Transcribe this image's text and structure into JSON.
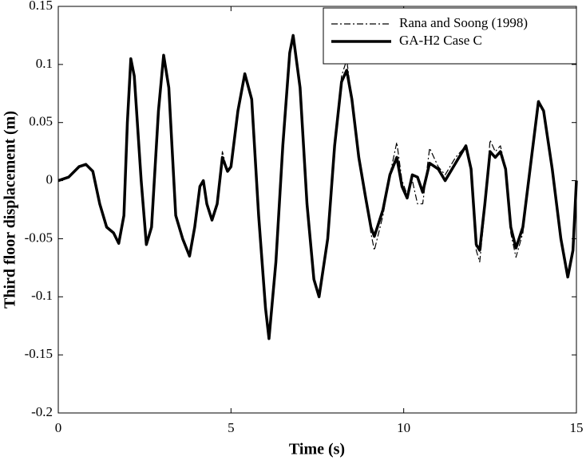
{
  "chart_data": {
    "type": "line",
    "xlabel": "Time (s)",
    "ylabel": "Third floor displacement (m)",
    "x": [
      0,
      0.3,
      0.6,
      0.8,
      1.0,
      1.2,
      1.4,
      1.6,
      1.75,
      1.9,
      2.0,
      2.1,
      2.2,
      2.4,
      2.55,
      2.7,
      2.9,
      3.05,
      3.2,
      3.4,
      3.6,
      3.8,
      3.95,
      4.1,
      4.2,
      4.3,
      4.45,
      4.6,
      4.75,
      4.9,
      5.0,
      5.2,
      5.4,
      5.6,
      5.8,
      6.0,
      6.1,
      6.3,
      6.5,
      6.7,
      6.8,
      7.0,
      7.2,
      7.4,
      7.55,
      7.8,
      8.0,
      8.2,
      8.35,
      8.5,
      8.7,
      8.9,
      9.05,
      9.15,
      9.4,
      9.6,
      9.8,
      9.95,
      10.1,
      10.25,
      10.4,
      10.55,
      10.75,
      11.0,
      11.2,
      11.5,
      11.8,
      11.95,
      12.1,
      12.2,
      12.35,
      12.5,
      12.65,
      12.8,
      12.95,
      13.1,
      13.25,
      13.45,
      13.7,
      13.9,
      14.05,
      14.3,
      14.55,
      14.75,
      14.9,
      15.0
    ],
    "series": [
      {
        "name": "Rana and Soong (1998)",
        "color": "#000000",
        "linestyle": "dashdot",
        "values": [
          0,
          0.003,
          0.012,
          0.014,
          0.008,
          -0.02,
          -0.04,
          -0.045,
          -0.054,
          -0.03,
          0.05,
          0.105,
          0.09,
          0.0,
          -0.055,
          -0.04,
          0.06,
          0.108,
          0.08,
          -0.03,
          -0.05,
          -0.065,
          -0.04,
          -0.005,
          0.0,
          -0.02,
          -0.034,
          -0.02,
          0.025,
          0.008,
          0.012,
          0.06,
          0.092,
          0.07,
          -0.03,
          -0.11,
          -0.136,
          -0.07,
          0.03,
          0.11,
          0.125,
          0.08,
          -0.02,
          -0.085,
          -0.1,
          -0.05,
          0.03,
          0.09,
          0.104,
          0.07,
          0.02,
          -0.015,
          -0.045,
          -0.06,
          -0.03,
          0.005,
          0.033,
          0.0,
          -0.012,
          0.0,
          -0.02,
          -0.02,
          0.028,
          0.012,
          0.005,
          0.02,
          0.03,
          0.01,
          -0.06,
          -0.07,
          -0.025,
          0.035,
          0.025,
          0.03,
          0.01,
          -0.045,
          -0.066,
          -0.045,
          0.02,
          0.07,
          0.06,
          0.01,
          -0.05,
          -0.083,
          -0.06,
          0.0
        ]
      },
      {
        "name": "GA-H2 Case C",
        "color": "#000000",
        "linestyle": "solid",
        "values": [
          0,
          0.003,
          0.012,
          0.014,
          0.008,
          -0.02,
          -0.04,
          -0.045,
          -0.054,
          -0.03,
          0.05,
          0.105,
          0.09,
          0.0,
          -0.055,
          -0.04,
          0.06,
          0.108,
          0.08,
          -0.03,
          -0.05,
          -0.065,
          -0.04,
          -0.005,
          0.0,
          -0.02,
          -0.034,
          -0.02,
          0.02,
          0.008,
          0.012,
          0.06,
          0.092,
          0.07,
          -0.03,
          -0.11,
          -0.136,
          -0.07,
          0.03,
          0.11,
          0.125,
          0.08,
          -0.02,
          -0.085,
          -0.1,
          -0.05,
          0.03,
          0.085,
          0.095,
          0.07,
          0.02,
          -0.015,
          -0.04,
          -0.048,
          -0.025,
          0.005,
          0.02,
          -0.005,
          -0.015,
          0.005,
          0.003,
          -0.01,
          0.015,
          0.01,
          0.0,
          0.015,
          0.03,
          0.01,
          -0.055,
          -0.06,
          -0.02,
          0.025,
          0.02,
          0.025,
          0.01,
          -0.04,
          -0.058,
          -0.04,
          0.02,
          0.068,
          0.06,
          0.01,
          -0.05,
          -0.083,
          -0.06,
          0.0
        ]
      }
    ],
    "xlim": [
      0,
      15
    ],
    "xticks": [
      0,
      5,
      10,
      15
    ],
    "ylim": [
      -0.2,
      0.15
    ],
    "yticks": [
      -0.2,
      -0.15,
      -0.1,
      -0.05,
      0,
      0.05,
      0.1,
      0.15
    ],
    "grid": false,
    "legend": "upper right"
  }
}
